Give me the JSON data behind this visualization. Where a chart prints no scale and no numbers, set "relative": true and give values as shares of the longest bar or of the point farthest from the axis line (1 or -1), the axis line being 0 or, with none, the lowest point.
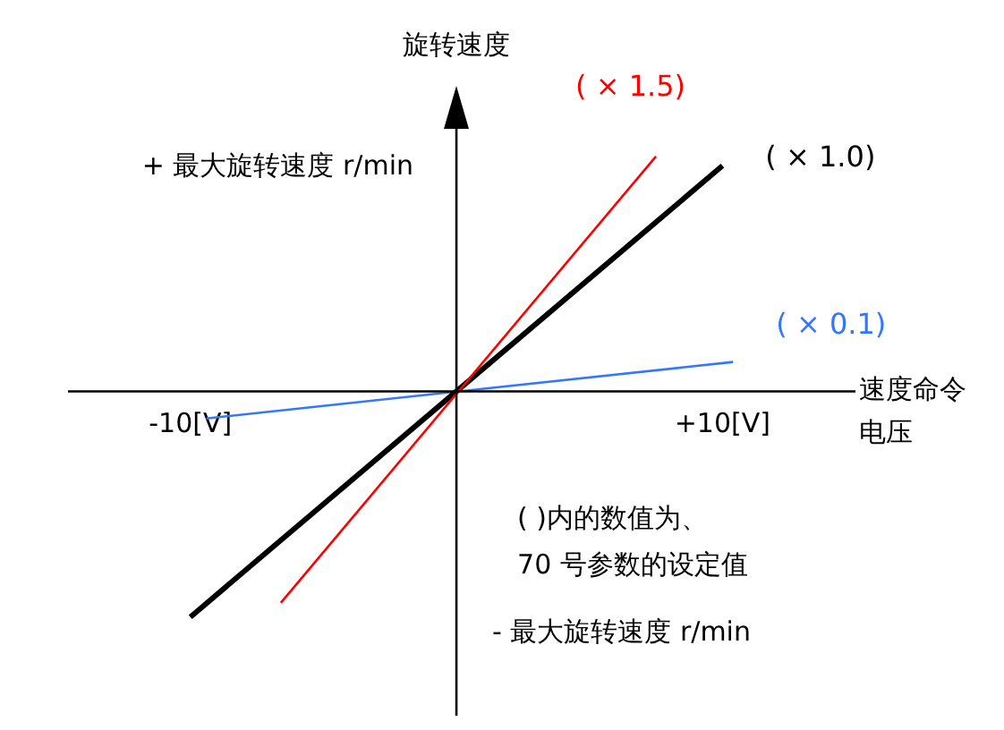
{
  "chart_data": {
    "type": "line",
    "xlabel": "速度命令电压",
    "ylabel": "旋转速度",
    "xlim": [
      -14.6,
      15
    ],
    "xticks": [
      {
        "value": -10,
        "label": "-10[V]"
      },
      {
        "value": 10,
        "label": "+10[V]"
      }
    ],
    "relative": true,
    "series": [
      {
        "name": "( × 1.5)",
        "color": "#ff0000",
        "x": [
          -6.6,
          7.5
        ],
        "values": [
          -0.9,
          1
        ]
      },
      {
        "name": "( × 1.0)",
        "color": "#000000",
        "x": [
          -10,
          10
        ],
        "values": [
          -0.96,
          0.96
        ]
      },
      {
        "name": "( × 0.1)",
        "color": "#3377ff",
        "x": [
          -9.4,
          10.4
        ],
        "values": [
          -0.115,
          0.125
        ]
      }
    ],
    "annotations": [
      "+ 最大旋转速度 r/min",
      "- 最大旋转速度 r/min",
      "( )内的数值为、\n70 号参数的设定值"
    ],
    "grid": false,
    "legend": false,
    "marker": "none",
    "line_style": "solid"
  }
}
